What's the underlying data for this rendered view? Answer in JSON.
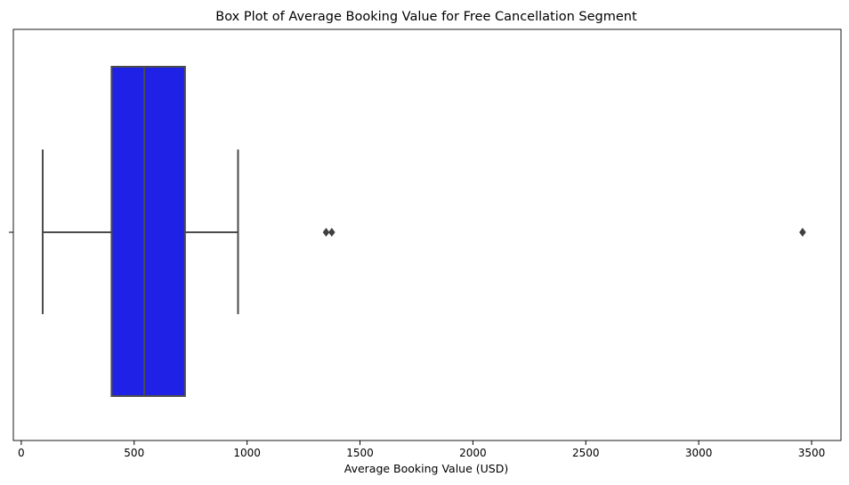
{
  "chart_data": {
    "type": "box",
    "title": "Box Plot of Average Booking Value for Free Cancellation Segment",
    "xlabel": "Average Booking Value (USD)",
    "ylabel": "",
    "orientation": "horizontal",
    "xlim": [
      -35,
      3630
    ],
    "xticks": [
      0,
      500,
      1000,
      1500,
      2000,
      2500,
      3000,
      3500
    ],
    "grid": false,
    "legend": "none",
    "colors": {
      "box_fill": "#1f22e6",
      "box_edge": "#4b4b4b",
      "whisker": "#4b4b4b",
      "median": "#4b4b4b",
      "outlier": "#404040",
      "axes": "#000000"
    },
    "box": {
      "lower_whisker": 95,
      "q1": 400,
      "median": 545,
      "q3": 725,
      "upper_whisker": 960,
      "outliers": [
        1350,
        1375,
        3460
      ]
    }
  }
}
